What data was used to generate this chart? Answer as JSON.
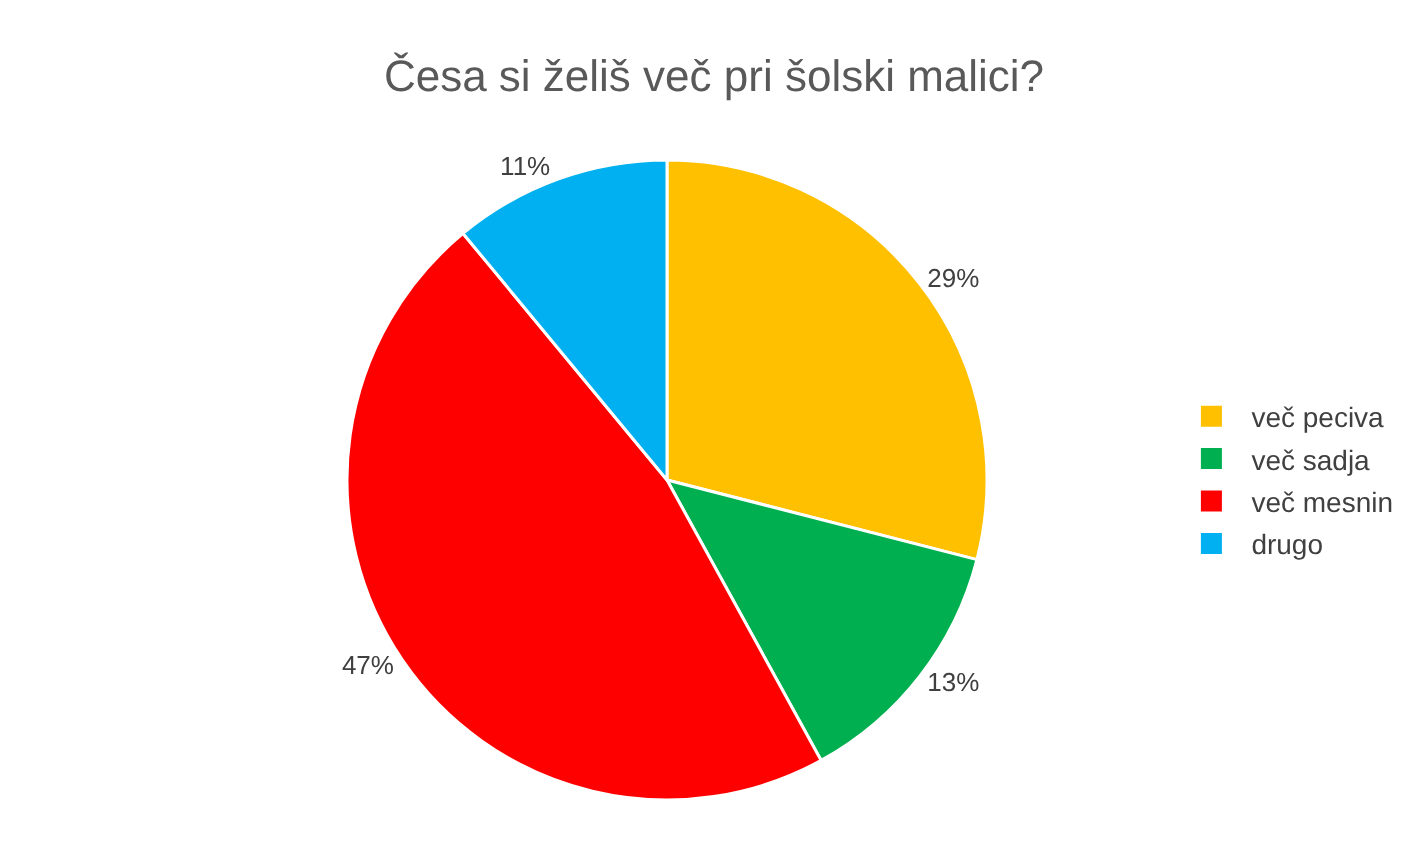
{
  "chart_data": {
    "type": "pie",
    "title": "Česa si želiš več pri šolski malici?",
    "categories": [
      "več peciva",
      "več sadja",
      "več mesnin",
      "drugo"
    ],
    "values": [
      29,
      13,
      47,
      11
    ],
    "colors": [
      "#ffc000",
      "#00b050",
      "#ff0000",
      "#00b0f0"
    ],
    "value_labels": [
      "29%",
      "13%",
      "47%",
      "11%"
    ],
    "legend": "right"
  }
}
